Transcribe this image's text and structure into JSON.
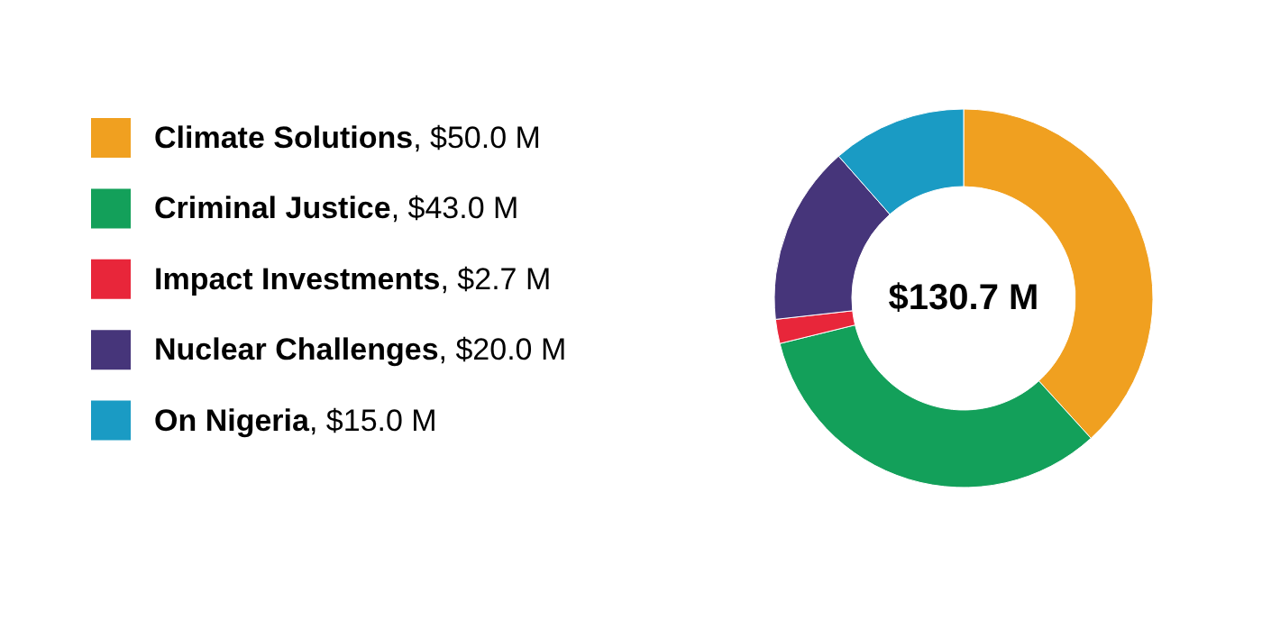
{
  "chart_data": {
    "type": "donut",
    "categories": [
      "Climate Solutions",
      "Criminal Justice",
      "Impact Investments",
      "Nuclear Challenges",
      "On Nigeria"
    ],
    "values": [
      50.0,
      43.0,
      2.7,
      20.0,
      15.0
    ],
    "value_labels": [
      ", $50.0 M",
      ", $43.0 M",
      ", $2.7 M",
      ", $20.0 M",
      ", $15.0 M"
    ],
    "colors": [
      "#f0a020",
      "#13a05a",
      "#e8263a",
      "#46357a",
      "#1a9bc4"
    ],
    "annotations": [
      "$130.7 M"
    ],
    "legend": "left"
  }
}
